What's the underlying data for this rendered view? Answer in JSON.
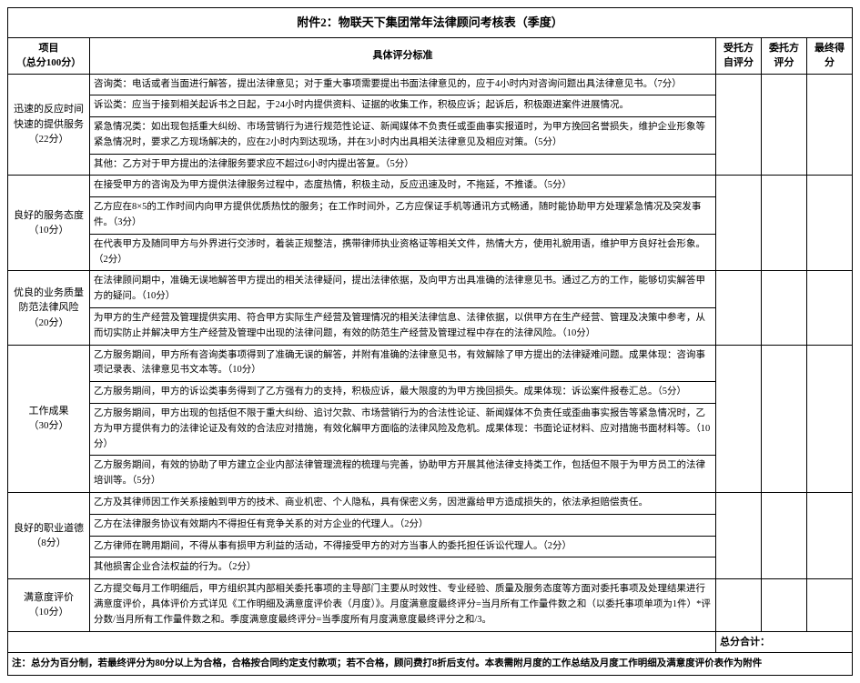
{
  "title": "附件2：物联天下集团常年法律顾问考核表（季度）",
  "headers": {
    "category": "项目",
    "category_sub": "（总分100分）",
    "criteria": "具体评分标准",
    "self_score": "受托方自评分",
    "client_score": "委托方评分",
    "final_score": "最终得分"
  },
  "sections": [
    {
      "name": "迅速的反应时间快速的提供服务",
      "points": "（22分）",
      "criteria": [
        "咨询类：电话或者当面进行解答，提出法律意见；对于重大事项需要提出书面法律意见的，应于4小时内对咨询问题出具法律意见书。（7分）",
        "诉讼类：应当于接到相关起诉书之日起，于24小时内提供资料、证据的收集工作，积极应诉；起诉后，积极跟进案件进展情况。",
        "紧急情况类：如出现包括重大纠纷、市场营销行为进行规范性论证、新闻媒体不负责任或歪曲事实报道时，为甲方挽回名誉损失，维护企业形象等紧急情况时，要求乙方现场解决的，应在2小时内到达现场，并在3小时内出具相关法律意见及相应对策。（5分）",
        "其他：乙方对于甲方提出的法律服务要求应不超过6小时内提出答复。（5分）"
      ]
    },
    {
      "name": "良好的服务态度",
      "points": "（10分）",
      "criteria": [
        "在接受甲方的咨询及为甲方提供法律服务过程中，态度热情，积极主动，反应迅速及时，不拖延，不推诿。（5分）",
        "乙方应在8×5的工作时间内向甲方提供优质热忱的服务；在工作时间外，乙方应保证手机等通讯方式畅通，随时能协助甲方处理紧急情况及突发事件。（3分）",
        "在代表甲方及随同甲方与外界进行交涉时，着装正规整洁，携带律师执业资格证等相关文件，热情大方，使用礼貌用语，维护甲方良好社会形象。（2分）"
      ]
    },
    {
      "name": "优良的业务质量防范法律风险",
      "points": "（20分）",
      "criteria": [
        "在法律顾问期中，准确无误地解答甲方提出的相关法律疑问，提出法律依据，及向甲方出具准确的法律意见书。通过乙方的工作，能够切实解答甲方的疑问。（10分）",
        "为甲方的生产经营及管理提供实用、符合甲方实际生产经营及管理情况的相关法律信息、法律依据，以供甲方在生产经营、管理及决策中参考，从而切实防止并解决甲方生产经营及管理中出现的法律问题，有效的防范生产经营及管理过程中存在的法律风险。（10分）"
      ]
    },
    {
      "name": "工作成果",
      "points": "（30分）",
      "criteria": [
        "乙方服务期间，甲方所有咨询类事项得到了准确无误的解答，并附有准确的法律意见书，有效解除了甲方提出的法律疑难问题。成果体现：咨询事项记录表、法律意见书文本等。（10分）",
        "乙方服务期间，甲方的诉讼类事务得到了乙方强有力的支持，积极应诉，最大限度的为甲方挽回损失。成果体现：诉讼案件报卷汇总。（5分）",
        "乙方服务期间，甲方出现的包括但不限于重大纠纷、追讨欠款、市场营销行为的合法性论证、新闻媒体不负责任或歪曲事实报告等紧急情况时，乙方为甲方提供有力的法律论证及有效的合法应对措施，有效化解甲方面临的法律风险及危机。成果体现：书面论证材料、应对措施书面材料等。（10分）",
        "乙方服务期间，有效的协助了甲方建立企业内部法律管理流程的梳理与完善，协助甲方开展其他法律支持类工作，包括但不限于为甲方员工的法律培训等。（5分）"
      ]
    },
    {
      "name": "良好的职业道德",
      "points": "（8分）",
      "criteria": [
        "乙方及其律师因工作关系接触到甲方的技术、商业机密、个人隐私，具有保密义务，因泄露给甲方造成损失的，依法承担赔偿责任。",
        "乙方在法律服务协议有效期内不得担任有竞争关系的对方企业的代理人。（2分）",
        "乙方律师在聘用期间，不得从事有损甲方利益的活动，不得接受甲方的对方当事人的委托担任诉讼代理人。（2分）",
        "其他损害企业合法权益的行为。（2分）"
      ]
    },
    {
      "name": "满意度评价",
      "points": "（10分）",
      "criteria": [
        "乙方提交每月工作明细后，甲方组织其内部相关委托事项的主导部门主要从时效性、专业经验、质量及服务态度等方面对委托事项及处理结果进行满意度评价，具体评价方式详见《工作明细及满意度评价表（月度）》。月度满意度最终评分=当月所有工作量件数之和（以委托事项单项为1件）*评分数/当月所有工作量件数之和。季度满意度最终评分=当季度所有月度满意度最终评分之和/3。"
      ]
    }
  ],
  "total_label": "总分合计：",
  "note_label": "注：总分为百分制，若最终评分为80分以上为合格，合格按合同约定支付款项；若不合格，顾问费打8折后支付。本表需附月度的工作总结及月度工作明细及满意度评价表作为附件",
  "style": {
    "background_color": "#ffffff",
    "border_color": "#000000",
    "title_fontsize": 13,
    "header_fontsize": 11,
    "body_fontsize": 10.5,
    "col_widths": {
      "category": 90,
      "score": 50
    }
  }
}
